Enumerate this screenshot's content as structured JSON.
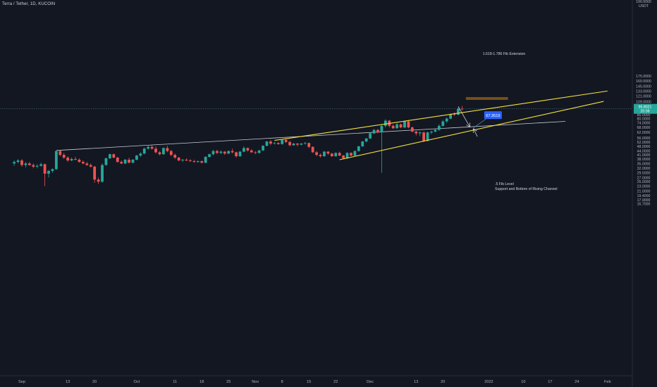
{
  "header": {
    "symbol_line": "Terra / Tether, 1D, KUCOIN"
  },
  "chart_data": {
    "type": "candlestick",
    "symbol": "Terra / Tether",
    "interval": "1D",
    "exchange": "KUCOIN",
    "scale": "log",
    "y_unit": "USDT",
    "ylim": [
      15.7,
      198
    ],
    "y_ticks": [
      "16.7000",
      "17.9000",
      "19.4000",
      "21.0000",
      "23.0000",
      "25.0000",
      "27.0000",
      "29.5000",
      "32.0000",
      "35.0000",
      "38.0000",
      "41.0000",
      "44.0000",
      "48.0000",
      "52.0000",
      "56.0000",
      "62.0000",
      "68.0000",
      "74.0000",
      "80.0000",
      "86.0000",
      "93.0000",
      "101.0000",
      "109.0000",
      "121.0000",
      "133.0000",
      "145.0000",
      "160.0000",
      "175.0000"
    ],
    "y_tick_values": [
      16.7,
      17.9,
      19.4,
      21,
      23,
      25,
      27,
      29.5,
      32,
      35,
      38,
      41,
      44,
      48,
      52,
      56,
      62,
      68,
      74,
      80,
      86,
      93,
      101,
      109,
      121,
      133,
      145,
      160,
      175
    ],
    "y_top_label": "190.0000",
    "x_ticks": [
      {
        "label": "Sep",
        "date": "2021-09-01"
      },
      {
        "label": "13",
        "date": "2021-09-13"
      },
      {
        "label": "20",
        "date": "2021-09-20"
      },
      {
        "label": "Oct",
        "date": "2021-10-01"
      },
      {
        "label": "11",
        "date": "2021-10-11"
      },
      {
        "label": "18",
        "date": "2021-10-18"
      },
      {
        "label": "25",
        "date": "2021-10-25"
      },
      {
        "label": "Nov",
        "date": "2021-11-01"
      },
      {
        "label": "8",
        "date": "2021-11-08"
      },
      {
        "label": "15",
        "date": "2021-11-15"
      },
      {
        "label": "22",
        "date": "2021-11-22"
      },
      {
        "label": "Dec",
        "date": "2021-12-01"
      },
      {
        "label": "13",
        "date": "2021-12-13"
      },
      {
        "label": "20",
        "date": "2021-12-20"
      },
      {
        "label": "2022",
        "date": "2022-01-01"
      },
      {
        "label": "10",
        "date": "2022-01-10"
      },
      {
        "label": "17",
        "date": "2022-01-17"
      },
      {
        "label": "24",
        "date": "2022-01-24"
      },
      {
        "label": "Feb",
        "date": "2022-02-01"
      }
    ],
    "candles": [
      {
        "date": "2021-08-30",
        "o": 35.0,
        "h": 37.0,
        "l": 33.5,
        "c": 36.0
      },
      {
        "date": "2021-08-31",
        "o": 36.0,
        "h": 38.0,
        "l": 35.0,
        "c": 37.0
      },
      {
        "date": "2021-09-01",
        "o": 37.0,
        "h": 38.0,
        "l": 33.0,
        "c": 34.0
      },
      {
        "date": "2021-09-02",
        "o": 34.0,
        "h": 36.0,
        "l": 32.5,
        "c": 35.0
      },
      {
        "date": "2021-09-03",
        "o": 35.0,
        "h": 36.0,
        "l": 33.5,
        "c": 34.0
      },
      {
        "date": "2021-09-04",
        "o": 34.0,
        "h": 35.0,
        "l": 32.0,
        "c": 33.0
      },
      {
        "date": "2021-09-05",
        "o": 33.0,
        "h": 34.5,
        "l": 32.0,
        "c": 33.5
      },
      {
        "date": "2021-09-06",
        "o": 33.5,
        "h": 35.5,
        "l": 33.0,
        "c": 34.5
      },
      {
        "date": "2021-09-07",
        "o": 34.5,
        "h": 35.0,
        "l": 23.0,
        "c": 29.0
      },
      {
        "date": "2021-09-08",
        "o": 29.0,
        "h": 31.0,
        "l": 27.0,
        "c": 30.5
      },
      {
        "date": "2021-09-09",
        "o": 30.5,
        "h": 32.0,
        "l": 29.5,
        "c": 31.5
      },
      {
        "date": "2021-09-10",
        "o": 31.5,
        "h": 44.5,
        "l": 31.0,
        "c": 44.0
      },
      {
        "date": "2021-09-11",
        "o": 44.0,
        "h": 44.5,
        "l": 40.0,
        "c": 41.0
      },
      {
        "date": "2021-09-12",
        "o": 41.0,
        "h": 42.5,
        "l": 38.0,
        "c": 39.0
      },
      {
        "date": "2021-09-13",
        "o": 39.0,
        "h": 40.0,
        "l": 36.0,
        "c": 37.0
      },
      {
        "date": "2021-09-14",
        "o": 37.0,
        "h": 39.0,
        "l": 36.5,
        "c": 38.0
      },
      {
        "date": "2021-09-15",
        "o": 38.0,
        "h": 39.5,
        "l": 37.0,
        "c": 37.5
      },
      {
        "date": "2021-09-16",
        "o": 37.5,
        "h": 38.5,
        "l": 35.5,
        "c": 36.0
      },
      {
        "date": "2021-09-17",
        "o": 36.0,
        "h": 37.0,
        "l": 34.5,
        "c": 35.0
      },
      {
        "date": "2021-09-18",
        "o": 35.0,
        "h": 36.0,
        "l": 33.5,
        "c": 34.0
      },
      {
        "date": "2021-09-19",
        "o": 34.0,
        "h": 35.0,
        "l": 32.5,
        "c": 33.0
      },
      {
        "date": "2021-09-20",
        "o": 33.0,
        "h": 33.5,
        "l": 24.5,
        "c": 26.0
      },
      {
        "date": "2021-09-21",
        "o": 26.0,
        "h": 27.0,
        "l": 24.0,
        "c": 25.0
      },
      {
        "date": "2021-09-22",
        "o": 25.0,
        "h": 35.0,
        "l": 24.5,
        "c": 34.0
      },
      {
        "date": "2021-09-23",
        "o": 34.0,
        "h": 39.0,
        "l": 33.5,
        "c": 38.5
      },
      {
        "date": "2021-09-24",
        "o": 38.5,
        "h": 42.0,
        "l": 38.0,
        "c": 41.5
      },
      {
        "date": "2021-09-25",
        "o": 41.5,
        "h": 42.0,
        "l": 38.5,
        "c": 39.0
      },
      {
        "date": "2021-09-26",
        "o": 39.0,
        "h": 39.5,
        "l": 35.5,
        "c": 36.0
      },
      {
        "date": "2021-09-27",
        "o": 36.0,
        "h": 37.0,
        "l": 34.5,
        "c": 35.0
      },
      {
        "date": "2021-09-28",
        "o": 35.0,
        "h": 38.0,
        "l": 34.5,
        "c": 37.5
      },
      {
        "date": "2021-09-29",
        "o": 37.5,
        "h": 39.0,
        "l": 35.0,
        "c": 35.5
      },
      {
        "date": "2021-09-30",
        "o": 35.5,
        "h": 38.0,
        "l": 35.0,
        "c": 37.5
      },
      {
        "date": "2021-10-01",
        "o": 37.5,
        "h": 41.0,
        "l": 37.0,
        "c": 40.5
      },
      {
        "date": "2021-10-02",
        "o": 40.5,
        "h": 43.0,
        "l": 39.5,
        "c": 42.0
      },
      {
        "date": "2021-10-03",
        "o": 42.0,
        "h": 47.0,
        "l": 41.5,
        "c": 46.0
      },
      {
        "date": "2021-10-04",
        "o": 46.0,
        "h": 49.0,
        "l": 45.0,
        "c": 47.5
      },
      {
        "date": "2021-10-05",
        "o": 47.5,
        "h": 49.0,
        "l": 45.0,
        "c": 46.0
      },
      {
        "date": "2021-10-06",
        "o": 46.0,
        "h": 48.0,
        "l": 42.0,
        "c": 43.0
      },
      {
        "date": "2021-10-07",
        "o": 43.0,
        "h": 44.0,
        "l": 40.5,
        "c": 41.5
      },
      {
        "date": "2021-10-08",
        "o": 41.5,
        "h": 47.0,
        "l": 41.0,
        "c": 46.5
      },
      {
        "date": "2021-10-09",
        "o": 46.5,
        "h": 48.5,
        "l": 43.0,
        "c": 44.0
      },
      {
        "date": "2021-10-10",
        "o": 44.0,
        "h": 45.0,
        "l": 40.0,
        "c": 41.0
      },
      {
        "date": "2021-10-11",
        "o": 41.0,
        "h": 42.0,
        "l": 38.0,
        "c": 39.0
      },
      {
        "date": "2021-10-12",
        "o": 39.0,
        "h": 39.5,
        "l": 36.5,
        "c": 37.0
      },
      {
        "date": "2021-10-13",
        "o": 37.0,
        "h": 38.0,
        "l": 36.0,
        "c": 37.5
      },
      {
        "date": "2021-10-14",
        "o": 37.5,
        "h": 38.5,
        "l": 36.5,
        "c": 37.0
      },
      {
        "date": "2021-10-15",
        "o": 37.0,
        "h": 38.0,
        "l": 36.0,
        "c": 36.5
      },
      {
        "date": "2021-10-16",
        "o": 36.5,
        "h": 37.5,
        "l": 35.5,
        "c": 36.0
      },
      {
        "date": "2021-10-17",
        "o": 36.0,
        "h": 37.0,
        "l": 35.5,
        "c": 36.5
      },
      {
        "date": "2021-10-18",
        "o": 36.5,
        "h": 37.0,
        "l": 35.0,
        "c": 35.5
      },
      {
        "date": "2021-10-19",
        "o": 35.5,
        "h": 40.0,
        "l": 35.0,
        "c": 39.5
      },
      {
        "date": "2021-10-20",
        "o": 39.5,
        "h": 42.0,
        "l": 39.0,
        "c": 41.5
      },
      {
        "date": "2021-10-21",
        "o": 41.5,
        "h": 45.0,
        "l": 40.5,
        "c": 44.0
      },
      {
        "date": "2021-10-22",
        "o": 44.0,
        "h": 45.0,
        "l": 41.5,
        "c": 42.5
      },
      {
        "date": "2021-10-23",
        "o": 42.5,
        "h": 44.5,
        "l": 41.5,
        "c": 43.5
      },
      {
        "date": "2021-10-24",
        "o": 43.5,
        "h": 44.0,
        "l": 41.0,
        "c": 42.0
      },
      {
        "date": "2021-10-25",
        "o": 42.0,
        "h": 44.5,
        "l": 41.5,
        "c": 44.0
      },
      {
        "date": "2021-10-26",
        "o": 44.0,
        "h": 46.0,
        "l": 42.0,
        "c": 43.0
      },
      {
        "date": "2021-10-27",
        "o": 43.0,
        "h": 43.5,
        "l": 39.0,
        "c": 40.0
      },
      {
        "date": "2021-10-28",
        "o": 40.0,
        "h": 44.0,
        "l": 39.5,
        "c": 43.5
      },
      {
        "date": "2021-10-29",
        "o": 43.5,
        "h": 48.0,
        "l": 43.0,
        "c": 46.5
      },
      {
        "date": "2021-10-30",
        "o": 46.5,
        "h": 47.0,
        "l": 43.5,
        "c": 44.5
      },
      {
        "date": "2021-10-31",
        "o": 44.5,
        "h": 45.5,
        "l": 42.5,
        "c": 43.0
      },
      {
        "date": "2021-11-01",
        "o": 43.0,
        "h": 44.0,
        "l": 41.5,
        "c": 42.5
      },
      {
        "date": "2021-11-02",
        "o": 42.5,
        "h": 45.0,
        "l": 42.0,
        "c": 44.5
      },
      {
        "date": "2021-11-03",
        "o": 44.5,
        "h": 49.0,
        "l": 44.0,
        "c": 48.5
      },
      {
        "date": "2021-11-04",
        "o": 48.5,
        "h": 53.0,
        "l": 48.0,
        "c": 52.5
      },
      {
        "date": "2021-11-05",
        "o": 52.5,
        "h": 54.0,
        "l": 49.0,
        "c": 50.5
      },
      {
        "date": "2021-11-06",
        "o": 50.5,
        "h": 52.0,
        "l": 49.5,
        "c": 51.0
      },
      {
        "date": "2021-11-07",
        "o": 51.0,
        "h": 52.0,
        "l": 49.5,
        "c": 50.0
      },
      {
        "date": "2021-11-08",
        "o": 50.0,
        "h": 54.5,
        "l": 49.5,
        "c": 54.0
      },
      {
        "date": "2021-11-09",
        "o": 54.0,
        "h": 55.0,
        "l": 51.0,
        "c": 52.0
      },
      {
        "date": "2021-11-10",
        "o": 52.0,
        "h": 53.0,
        "l": 48.0,
        "c": 49.0
      },
      {
        "date": "2021-11-11",
        "o": 49.0,
        "h": 51.0,
        "l": 48.5,
        "c": 50.5
      },
      {
        "date": "2021-11-12",
        "o": 50.5,
        "h": 51.0,
        "l": 48.0,
        "c": 49.5
      },
      {
        "date": "2021-11-13",
        "o": 49.5,
        "h": 51.0,
        "l": 49.0,
        "c": 50.5
      },
      {
        "date": "2021-11-14",
        "o": 50.5,
        "h": 52.0,
        "l": 49.5,
        "c": 51.0
      },
      {
        "date": "2021-11-15",
        "o": 51.0,
        "h": 51.5,
        "l": 46.5,
        "c": 47.5
      },
      {
        "date": "2021-11-16",
        "o": 47.5,
        "h": 48.0,
        "l": 42.5,
        "c": 43.0
      },
      {
        "date": "2021-11-17",
        "o": 43.0,
        "h": 44.0,
        "l": 40.0,
        "c": 41.0
      },
      {
        "date": "2021-11-18",
        "o": 41.0,
        "h": 42.0,
        "l": 39.0,
        "c": 40.0
      },
      {
        "date": "2021-11-19",
        "o": 40.0,
        "h": 44.0,
        "l": 39.5,
        "c": 43.5
      },
      {
        "date": "2021-11-20",
        "o": 43.5,
        "h": 44.0,
        "l": 41.0,
        "c": 42.0
      },
      {
        "date": "2021-11-21",
        "o": 42.0,
        "h": 42.5,
        "l": 39.5,
        "c": 40.0
      },
      {
        "date": "2021-11-22",
        "o": 40.0,
        "h": 43.0,
        "l": 39.5,
        "c": 42.5
      },
      {
        "date": "2021-11-23",
        "o": 42.5,
        "h": 43.5,
        "l": 40.0,
        "c": 40.5
      },
      {
        "date": "2021-11-24",
        "o": 40.5,
        "h": 41.0,
        "l": 38.0,
        "c": 38.5
      },
      {
        "date": "2021-11-25",
        "o": 38.5,
        "h": 43.0,
        "l": 38.0,
        "c": 42.5
      },
      {
        "date": "2021-11-26",
        "o": 42.5,
        "h": 43.0,
        "l": 40.0,
        "c": 40.5
      },
      {
        "date": "2021-11-27",
        "o": 40.5,
        "h": 44.5,
        "l": 40.0,
        "c": 44.0
      },
      {
        "date": "2021-11-28",
        "o": 44.0,
        "h": 48.5,
        "l": 43.5,
        "c": 48.0
      },
      {
        "date": "2021-11-29",
        "o": 48.0,
        "h": 53.0,
        "l": 47.5,
        "c": 52.5
      },
      {
        "date": "2021-11-30",
        "o": 52.5,
        "h": 56.0,
        "l": 51.5,
        "c": 55.5
      },
      {
        "date": "2021-12-01",
        "o": 55.5,
        "h": 62.0,
        "l": 55.0,
        "c": 61.0
      },
      {
        "date": "2021-12-02",
        "o": 61.0,
        "h": 66.0,
        "l": 60.0,
        "c": 65.0
      },
      {
        "date": "2021-12-03",
        "o": 65.0,
        "h": 66.0,
        "l": 61.0,
        "c": 62.0
      },
      {
        "date": "2021-12-04",
        "o": 62.0,
        "h": 72.0,
        "l": 29.5,
        "c": 70.0
      },
      {
        "date": "2021-12-05",
        "o": 70.0,
        "h": 79.0,
        "l": 68.0,
        "c": 77.0
      },
      {
        "date": "2021-12-06",
        "o": 77.0,
        "h": 78.0,
        "l": 68.0,
        "c": 70.0
      },
      {
        "date": "2021-12-07",
        "o": 70.0,
        "h": 72.0,
        "l": 66.0,
        "c": 67.0
      },
      {
        "date": "2021-12-08",
        "o": 67.0,
        "h": 74.0,
        "l": 66.5,
        "c": 72.0
      },
      {
        "date": "2021-12-09",
        "o": 72.0,
        "h": 73.0,
        "l": 67.0,
        "c": 68.0
      },
      {
        "date": "2021-12-10",
        "o": 68.0,
        "h": 77.0,
        "l": 67.0,
        "c": 76.0
      },
      {
        "date": "2021-12-11",
        "o": 76.0,
        "h": 78.0,
        "l": 67.0,
        "c": 68.0
      },
      {
        "date": "2021-12-12",
        "o": 68.0,
        "h": 69.0,
        "l": 62.0,
        "c": 63.0
      },
      {
        "date": "2021-12-13",
        "o": 63.0,
        "h": 64.0,
        "l": 58.5,
        "c": 61.0
      },
      {
        "date": "2021-12-14",
        "o": 61.0,
        "h": 63.0,
        "l": 58.0,
        "c": 62.0
      },
      {
        "date": "2021-12-15",
        "o": 62.0,
        "h": 63.0,
        "l": 52.0,
        "c": 53.0
      },
      {
        "date": "2021-12-16",
        "o": 53.0,
        "h": 63.0,
        "l": 52.5,
        "c": 62.0
      },
      {
        "date": "2021-12-17",
        "o": 62.0,
        "h": 64.0,
        "l": 60.0,
        "c": 63.0
      },
      {
        "date": "2021-12-18",
        "o": 63.0,
        "h": 66.0,
        "l": 62.0,
        "c": 65.0
      },
      {
        "date": "2021-12-19",
        "o": 65.0,
        "h": 72.0,
        "l": 64.0,
        "c": 70.0
      },
      {
        "date": "2021-12-20",
        "o": 70.0,
        "h": 78.0,
        "l": 69.0,
        "c": 76.0
      },
      {
        "date": "2021-12-21",
        "o": 76.0,
        "h": 82.0,
        "l": 74.0,
        "c": 80.0
      },
      {
        "date": "2021-12-22",
        "o": 80.0,
        "h": 88.0,
        "l": 79.0,
        "c": 87.0
      },
      {
        "date": "2021-12-23",
        "o": 87.0,
        "h": 90.0,
        "l": 84.0,
        "c": 86.0
      },
      {
        "date": "2021-12-24",
        "o": 86.0,
        "h": 98.0,
        "l": 85.0,
        "c": 96.0
      },
      {
        "date": "2021-12-25",
        "o": 96.0,
        "h": 101.0,
        "l": 93.0,
        "c": 95.8
      }
    ],
    "current_price": {
      "value": "95.8021",
      "timer": "20:08"
    },
    "annotations": {
      "fib_extension_label": "1.618-1.786 Fib Extension",
      "fib_extension_zone": {
        "from_date": "2021-12-26",
        "to_date": "2022-01-06",
        "low": 113,
        "high": 119
      },
      "price_label": "67.3519",
      "support_label_line1": ".5 Fib Level",
      "support_label_line2": "Support and Bottom of Rising Channel",
      "channel_upper": {
        "from": [
          "2021-11-06",
          53.5
        ],
        "to": [
          "2022-02-01",
          133
        ]
      },
      "channel_lower": {
        "from": [
          "2021-11-23",
          37.5
        ],
        "to": [
          "2022-01-31",
          110
        ]
      },
      "long_trendline": {
        "from": [
          "2021-09-10",
          44.5
        ],
        "to": [
          "2022-01-21",
          76
        ]
      },
      "projection_arrow": {
        "from": [
          "2021-12-24",
          100
        ],
        "to": [
          "2021-12-27",
          69
        ]
      },
      "target_line": {
        "from": [
          "2021-12-28",
          67.5
        ],
        "to": [
          "2022-01-02",
          87
        ]
      },
      "support_arrow": {
        "from": [
          "2021-12-29",
          57.5
        ],
        "to": [
          "2021-12-28",
          66
        ]
      }
    },
    "colors": {
      "background": "#131722",
      "up": "#26a69a",
      "down": "#ef5350",
      "channel": "#f5e13c",
      "trendline": "#c8ccd4",
      "price_line": "#4b6f7a",
      "label_box": "#2962ff",
      "fib_zone": "#8a5a14",
      "axis_text": "#b2b5be"
    },
    "grid": false
  }
}
